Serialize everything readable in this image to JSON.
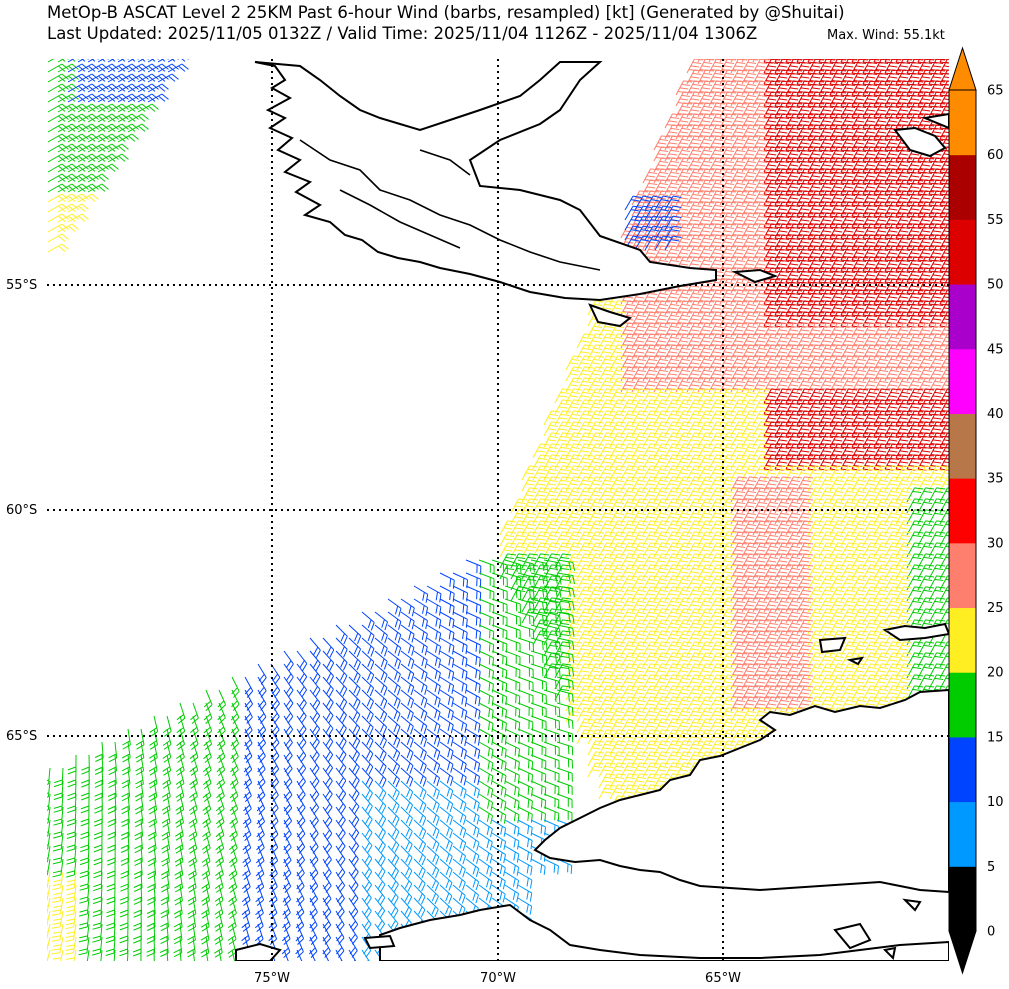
{
  "header": {
    "title": "MetOp-B ASCAT Level 2 25KM Past 6-hour Wind (barbs, resampled) [kt] (Generated by @Shuitai)",
    "subtitle": "Last Updated: 2025/11/05 0132Z / Valid Time: 2025/11/04 1126Z - 2025/11/04 1306Z",
    "max_wind": "Max. Wind: 55.1kt"
  },
  "map": {
    "lat_labels": [
      "55°S",
      "60°S",
      "65°S"
    ],
    "lon_labels": [
      "75°W",
      "70°W",
      "65°W"
    ],
    "land_color": "#ffffff",
    "coast_color": "#000000"
  },
  "colorbar": {
    "ticks": [
      "0",
      "5",
      "10",
      "15",
      "20",
      "25",
      "30",
      "35",
      "40",
      "45",
      "50",
      "55",
      "60",
      "65"
    ],
    "colors": [
      "#000000",
      "#0099ff",
      "#0044ff",
      "#00cc00",
      "#ffee22",
      "#ff7f6e",
      "#ff0000",
      "#b87748",
      "#ff00ff",
      "#aa00cc",
      "#dd0000",
      "#aa0000",
      "#ff8c00"
    ],
    "over_color": "#ff8c00",
    "under_color": "#000000"
  }
}
